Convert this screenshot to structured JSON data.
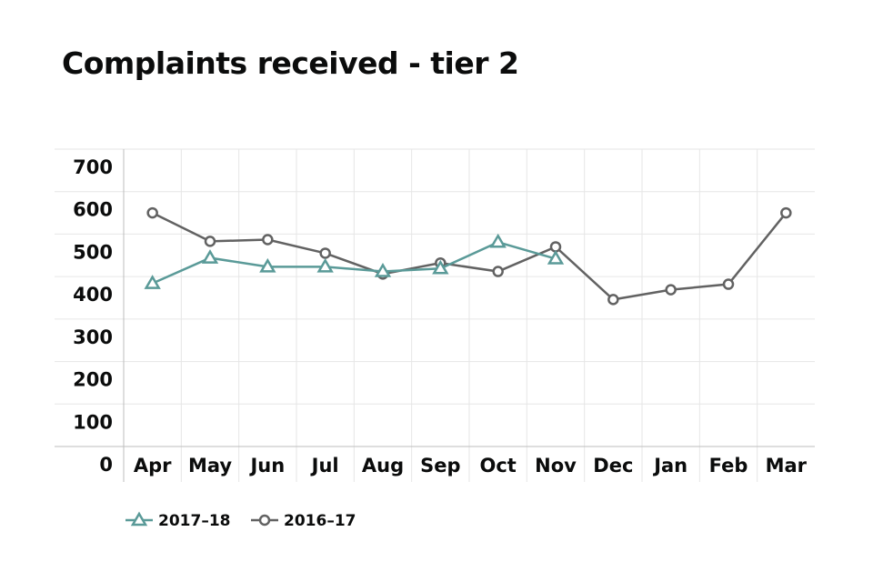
{
  "chart_data": {
    "type": "line",
    "title": "Complaints received - tier 2",
    "categories": [
      "Apr",
      "May",
      "Jun",
      "Jul",
      "Aug",
      "Sep",
      "Oct",
      "Nov",
      "Dec",
      "Jan",
      "Feb",
      "Mar"
    ],
    "yticks": [
      "0",
      "100",
      "200",
      "300",
      "400",
      "500",
      "600",
      "700"
    ],
    "ylim": [
      0,
      700
    ],
    "grid": true,
    "legend_position": "bottom-left",
    "series": [
      {
        "name": "2017–18",
        "marker": "triangle",
        "color": "#5a9a98",
        "values": [
          384,
          444,
          423,
          423,
          412,
          419,
          481,
          442,
          null,
          null,
          null,
          null
        ]
      },
      {
        "name": "2016–17",
        "marker": "circle",
        "color": "#626262",
        "values": [
          550,
          483,
          487,
          455,
          406,
          432,
          412,
          470,
          346,
          369,
          382,
          550
        ]
      }
    ]
  }
}
